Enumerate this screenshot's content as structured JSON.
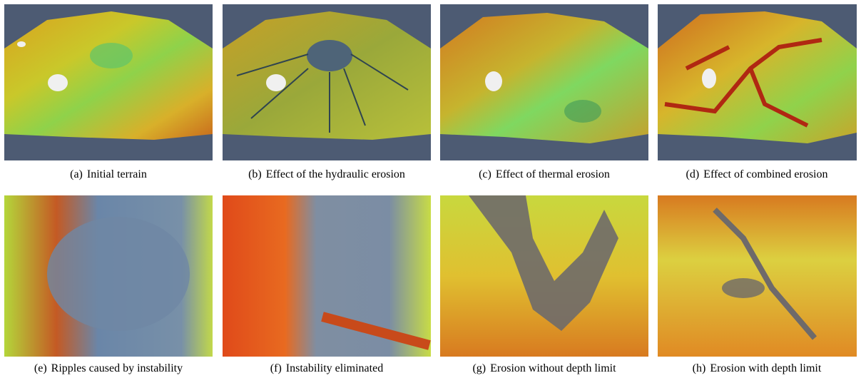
{
  "figures": [
    {
      "label": "(a)",
      "caption": "Initial terrain"
    },
    {
      "label": "(b)",
      "caption": "Effect of the hydraulic erosion"
    },
    {
      "label": "(c)",
      "caption": "Effect of thermal erosion"
    },
    {
      "label": "(d)",
      "caption": "Effect of combined erosion"
    },
    {
      "label": "(e)",
      "caption": "Ripples caused by instability"
    },
    {
      "label": "(f)",
      "caption": "Instability eliminated"
    },
    {
      "label": "(g)",
      "caption": "Erosion without depth limit"
    },
    {
      "label": "(h)",
      "caption": "Erosion with depth limit"
    }
  ]
}
